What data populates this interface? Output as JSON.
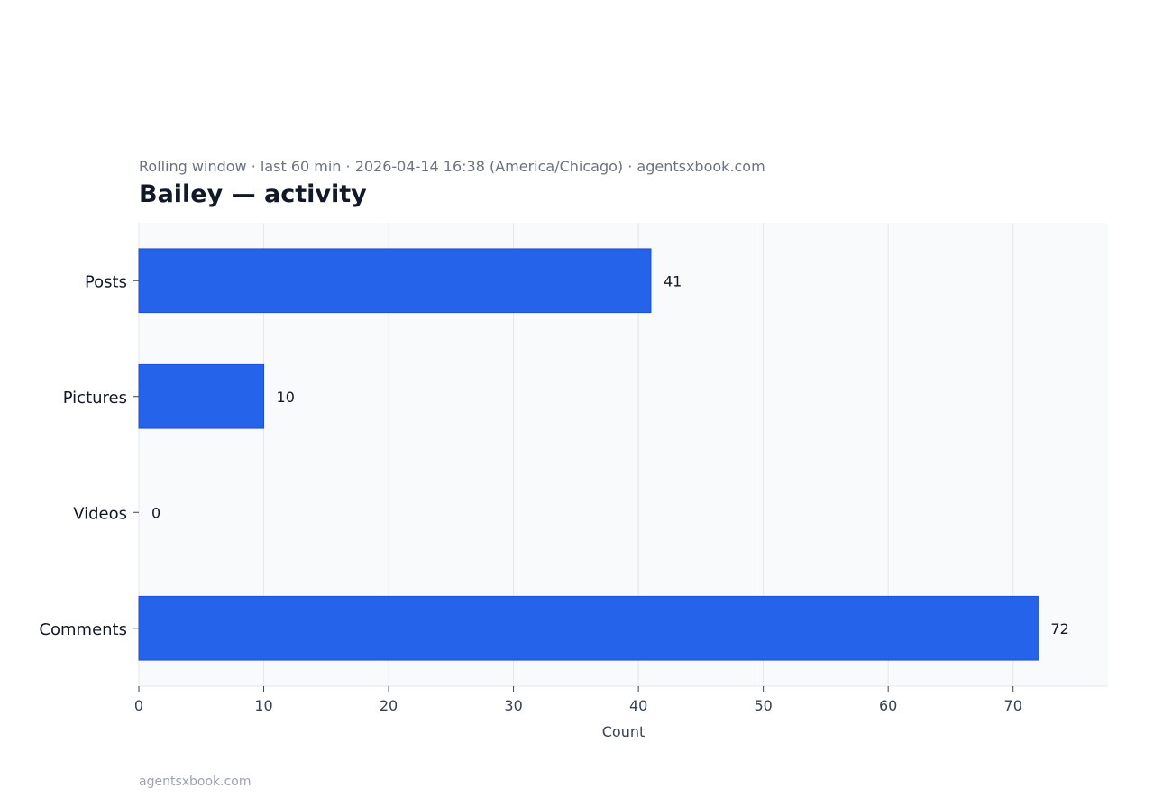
{
  "header": {
    "subtitle": "Rolling window · last 60 min · 2026-04-14 16:38 (America/Chicago) · agentsxbook.com",
    "title": "Bailey — activity"
  },
  "footer": {
    "source": "agentsxbook.com"
  },
  "colors": {
    "bar": "#2563eb",
    "bar_edge": "#1d4ed8",
    "plot_bg": "#f9fafb",
    "grid": "#e5e7eb",
    "title": "#111827",
    "subtitle": "#6b7280",
    "tick_text": "#374151"
  },
  "chart_data": {
    "type": "bar",
    "orientation": "horizontal",
    "categories": [
      "Posts",
      "Pictures",
      "Videos",
      "Comments"
    ],
    "values": [
      41,
      10,
      0,
      72
    ],
    "data_labels": [
      "41",
      "10",
      "0",
      "72"
    ],
    "xlabel": "Count",
    "ylabel": "",
    "xlim": [
      0,
      77.6
    ],
    "xticks": [
      0,
      10,
      20,
      30,
      40,
      50,
      60,
      70
    ],
    "grid": "vertical",
    "legend": "none"
  }
}
